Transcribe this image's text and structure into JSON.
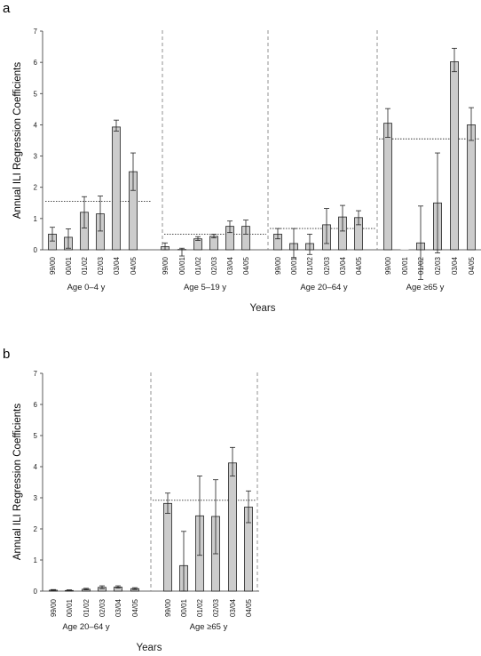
{
  "chart_data": [
    {
      "panel_label": "a",
      "type": "bar",
      "ylabel": "Annual ILI Regression Coefficients",
      "xlabel": "Years",
      "ylim": [
        0,
        7
      ],
      "yticks": [
        "0",
        "1",
        "2",
        "3",
        "4",
        "5",
        "6",
        "7"
      ],
      "groups": [
        {
          "label": "Age 0–4 y",
          "categories": [
            "99/00",
            "00/01",
            "01/02",
            "02/03",
            "03/04",
            "04/05"
          ],
          "values": [
            0.5,
            0.4,
            1.2,
            1.15,
            3.93,
            2.5
          ],
          "error_low": [
            0.28,
            0.05,
            0.7,
            0.6,
            3.8,
            1.9
          ],
          "error_high": [
            0.72,
            0.67,
            1.7,
            1.72,
            4.15,
            3.1
          ],
          "mean_line": 1.55
        },
        {
          "label": "Age 5–19 y",
          "categories": [
            "99/00",
            "00/01",
            "01/02",
            "02/03",
            "03/04",
            "04/05"
          ],
          "values": [
            0.1,
            0.01,
            0.35,
            0.43,
            0.75,
            0.75
          ],
          "error_low": [
            0.0,
            -0.2,
            0.3,
            0.38,
            0.55,
            0.5
          ],
          "error_high": [
            0.22,
            0.05,
            0.42,
            0.5,
            0.92,
            0.95
          ],
          "mean_line": 0.5
        },
        {
          "label": "Age 20–64 y",
          "categories": [
            "99/00",
            "00/01",
            "01/02",
            "02/03",
            "03/04",
            "04/05"
          ],
          "values": [
            0.5,
            0.2,
            0.2,
            0.8,
            1.05,
            1.03
          ],
          "error_low": [
            0.35,
            -0.25,
            -0.15,
            0.2,
            0.6,
            0.8
          ],
          "error_high": [
            0.68,
            0.68,
            0.5,
            1.32,
            1.42,
            1.25
          ],
          "mean_line": 0.68
        },
        {
          "label": "Age ≥65 y",
          "categories": [
            "99/00",
            "00/01",
            "01/02",
            "02/03",
            "03/04",
            "04/05"
          ],
          "values": [
            4.05,
            0.0,
            0.22,
            1.5,
            6.02,
            4.0
          ],
          "error_low": [
            3.6,
            0.0,
            -0.95,
            -0.1,
            5.7,
            3.5
          ],
          "error_high": [
            4.52,
            0.0,
            1.4,
            3.1,
            6.45,
            4.55
          ],
          "mean_line": 3.55
        }
      ]
    },
    {
      "panel_label": "b",
      "type": "bar",
      "ylabel": "Annual ILI Regression Coefficients",
      "xlabel": "Years",
      "ylim": [
        0,
        7
      ],
      "yticks": [
        "0",
        "1",
        "2",
        "3",
        "4",
        "5",
        "6",
        "7"
      ],
      "groups": [
        {
          "label": "Age 20–64 y",
          "categories": [
            "99/00",
            "00/01",
            "01/02",
            "02/03",
            "03/04",
            "04/05"
          ],
          "values": [
            0.03,
            0.02,
            0.06,
            0.12,
            0.13,
            0.08
          ],
          "error_low": [
            0.01,
            0.0,
            0.04,
            0.08,
            0.1,
            0.05
          ],
          "error_high": [
            0.05,
            0.04,
            0.09,
            0.17,
            0.17,
            0.11
          ],
          "mean_line": null
        },
        {
          "label": "Age ≥65 y",
          "categories": [
            "99/00",
            "00/01",
            "01/02",
            "02/03",
            "03/04",
            "04/05"
          ],
          "values": [
            2.82,
            0.82,
            2.42,
            2.4,
            4.12,
            2.7
          ],
          "error_low": [
            2.5,
            0.0,
            1.15,
            1.2,
            3.7,
            2.2
          ],
          "error_high": [
            3.15,
            1.92,
            3.7,
            3.58,
            4.62,
            3.22
          ],
          "mean_line": 2.92
        }
      ]
    }
  ]
}
